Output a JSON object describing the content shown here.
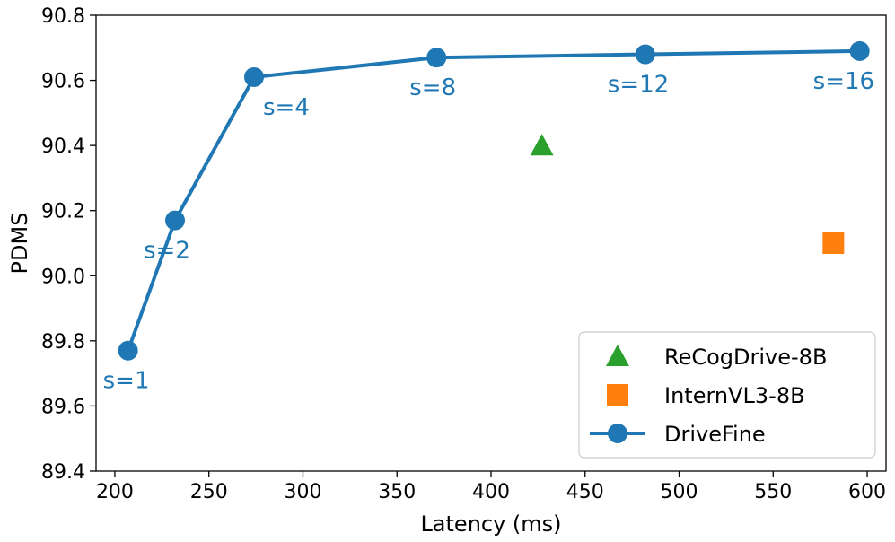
{
  "chart_data": {
    "type": "line",
    "xlabel": "Latency (ms)",
    "ylabel": "PDMS",
    "xlim": [
      190,
      610
    ],
    "ylim": [
      89.4,
      90.8
    ],
    "xticks": [
      200,
      250,
      300,
      350,
      400,
      450,
      500,
      550,
      600
    ],
    "xtick_labels": [
      "200",
      "250",
      "300",
      "350",
      "400",
      "450",
      "500",
      "550",
      "600"
    ],
    "yticks": [
      89.4,
      89.6,
      89.8,
      90.0,
      90.2,
      90.4,
      90.6,
      90.8
    ],
    "ytick_labels": [
      "89.4",
      "89.6",
      "89.8",
      "90.0",
      "90.2",
      "90.4",
      "90.6",
      "90.8"
    ],
    "grid": false,
    "legend_position": "bottom-right",
    "series": [
      {
        "name": "DriveFine",
        "type": "line",
        "marker": "circle",
        "color": "#1f77b4",
        "points": [
          {
            "x": 207,
            "y": 89.77,
            "label": "s=1"
          },
          {
            "x": 232,
            "y": 90.17,
            "label": "s=2"
          },
          {
            "x": 274,
            "y": 90.61,
            "label": "s=4"
          },
          {
            "x": 371,
            "y": 90.67,
            "label": "s=8"
          },
          {
            "x": 482,
            "y": 90.68,
            "label": "s=12"
          },
          {
            "x": 596,
            "y": 90.69,
            "label": "s=16"
          }
        ]
      },
      {
        "name": "ReCogDrive-8B",
        "type": "scatter",
        "marker": "triangle",
        "color": "#2ca02c",
        "points": [
          {
            "x": 427,
            "y": 90.4
          }
        ]
      },
      {
        "name": "InternVL3-8B",
        "type": "scatter",
        "marker": "square",
        "color": "#ff7f0e",
        "points": [
          {
            "x": 582,
            "y": 90.1
          }
        ]
      }
    ],
    "legend": [
      "ReCogDrive-8B",
      "InternVL3-8B",
      "DriveFine"
    ]
  }
}
